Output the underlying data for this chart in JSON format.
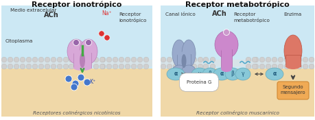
{
  "title_left": "Receptor ionotrópico",
  "title_right": "Receptor metabotrópico",
  "subtitle_left": "Receptores colinérgicos nicotínicos",
  "subtitle_right": "Receptor colinérgico muscarínico",
  "label_extracelular": "Medio extracelular",
  "label_ach_left": "ACh",
  "label_na": "Na⁺",
  "label_receptor_ion": "Receptor\nionotrópico",
  "label_citoplasma": "Citoplasma",
  "label_k": "K⁺",
  "label_canal_ionic": "Canal iónico",
  "label_ach_right": "ACh",
  "label_receptor_meta": "Receptor\nmetabotrópico",
  "label_enzima": "Enzima",
  "label_proteina_g": "Proteína G",
  "label_segundo": "Segundo\nmensajero",
  "bg_top_left": "#cce8f4",
  "bg_bottom_left": "#f0d8a8",
  "bg_top_right": "#cce8f4",
  "bg_bottom_right": "#f0d8a8",
  "membrane_color_light": "#d0d0d0",
  "membrane_color_dark": "#b8b8b8",
  "receptor_ion_color": "#d8a8d8",
  "receptor_ion_dark": "#b880b8",
  "receptor_meta_color": "#cc88cc",
  "receptor_meta_dark": "#aa66aa",
  "canal_ionic_color": "#99aacc",
  "canal_ionic_dark": "#7788aa",
  "enzima_color": "#dd7766",
  "enzima_dark": "#bb5544",
  "protein_g_color": "#88c8d8",
  "protein_g_dark": "#66a8b8",
  "segundo_color": "#f0aa55",
  "segundo_dark": "#d08833",
  "k_dot_color": "#4477cc",
  "na_dot_color": "#dd3333",
  "ach_dot_color": "#9966aa",
  "green_color": "#44aa44",
  "dark_text": "#333333",
  "mid_text": "#555555",
  "wavy_color": "#55aacc"
}
